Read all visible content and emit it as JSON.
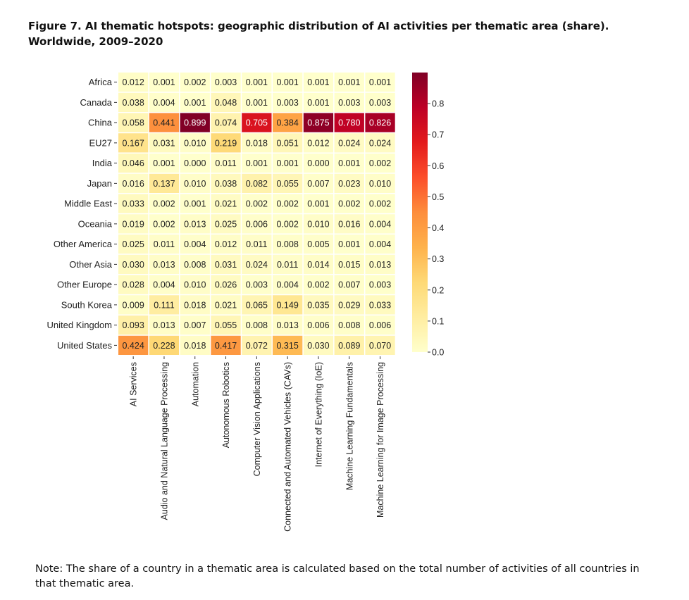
{
  "figure": {
    "title": "Figure 7. AI thematic hotspots: geographic distribution of AI activities per thematic area (share). Worldwide, 2009–2020",
    "note": "Note: The share of a country in a thematic area is calculated based on the total number of activities of all countries in that thematic area."
  },
  "chart_data": {
    "type": "heatmap",
    "title": "AI thematic hotspots: geographic distribution of AI activities per thematic area (share). Worldwide, 2009–2020",
    "rows": [
      "Africa",
      "Canada",
      "China",
      "EU27",
      "India",
      "Japan",
      "Middle East",
      "Oceania",
      "Other America",
      "Other Asia",
      "Other Europe",
      "South Korea",
      "United Kingdom",
      "United States"
    ],
    "columns": [
      "AI Services",
      "Audio and Natural Language Processing",
      "Automation",
      "Autonomous Robotics",
      "Computer Vision Applications",
      "Connected and Automated Vehicles (CAVs)",
      "Internet of Everything (IoE)",
      "Machine Learning Fundamentals",
      "Machine Learning for Image Processing"
    ],
    "values": [
      [
        0.012,
        0.001,
        0.002,
        0.003,
        0.001,
        0.001,
        0.001,
        0.001,
        0.001
      ],
      [
        0.038,
        0.004,
        0.001,
        0.048,
        0.001,
        0.003,
        0.001,
        0.003,
        0.003
      ],
      [
        0.058,
        0.441,
        0.899,
        0.074,
        0.705,
        0.384,
        0.875,
        0.78,
        0.826
      ],
      [
        0.167,
        0.031,
        0.01,
        0.219,
        0.018,
        0.051,
        0.012,
        0.024,
        0.024
      ],
      [
        0.046,
        0.001,
        0.0,
        0.011,
        0.001,
        0.001,
        0.0,
        0.001,
        0.002
      ],
      [
        0.016,
        0.137,
        0.01,
        0.038,
        0.082,
        0.055,
        0.007,
        0.023,
        0.01
      ],
      [
        0.033,
        0.002,
        0.001,
        0.021,
        0.002,
        0.002,
        0.001,
        0.002,
        0.002
      ],
      [
        0.019,
        0.002,
        0.013,
        0.025,
        0.006,
        0.002,
        0.01,
        0.016,
        0.004
      ],
      [
        0.025,
        0.011,
        0.004,
        0.012,
        0.011,
        0.008,
        0.005,
        0.001,
        0.004
      ],
      [
        0.03,
        0.013,
        0.008,
        0.031,
        0.024,
        0.011,
        0.014,
        0.015,
        0.013
      ],
      [
        0.028,
        0.004,
        0.01,
        0.026,
        0.003,
        0.004,
        0.002,
        0.007,
        0.003
      ],
      [
        0.009,
        0.111,
        0.018,
        0.021,
        0.065,
        0.149,
        0.035,
        0.029,
        0.033
      ],
      [
        0.093,
        0.013,
        0.007,
        0.055,
        0.008,
        0.013,
        0.006,
        0.008,
        0.006
      ],
      [
        0.424,
        0.228,
        0.018,
        0.417,
        0.072,
        0.315,
        0.03,
        0.089,
        0.07
      ]
    ],
    "value_format": "3 decimals",
    "colorbar": {
      "range": [
        0,
        0.9
      ],
      "ticks": [
        0.0,
        0.1,
        0.2,
        0.3,
        0.4,
        0.5,
        0.6,
        0.7,
        0.8
      ],
      "tick_labels": [
        "0.0",
        "0.1",
        "0.2",
        "0.3",
        "0.4",
        "0.5",
        "0.6",
        "0.7",
        "0.8"
      ],
      "colormap": "YlOrRd",
      "colormap_stops": [
        "#ffffcc",
        "#ffeda0",
        "#fed976",
        "#feb24c",
        "#fd8d3c",
        "#fc4e2a",
        "#e31a1c",
        "#bd0026",
        "#800026"
      ]
    },
    "xlabel": "",
    "ylabel": "",
    "grid": false,
    "legend": "colorbar on right"
  }
}
